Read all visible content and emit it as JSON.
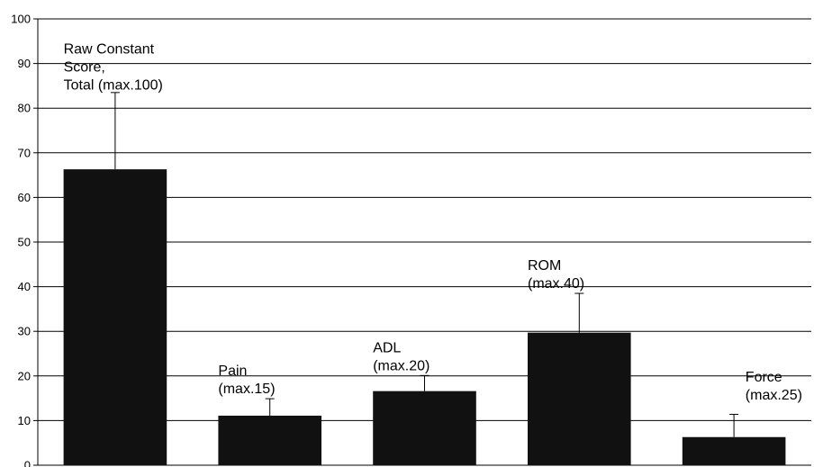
{
  "chart_data": {
    "type": "bar",
    "categories": [
      "Raw Constant Score, Total (max.100)",
      "Pain (max.15)",
      "ADL (max.20)",
      "ROM (max.40)",
      "Force (max.25)"
    ],
    "bar_labels": [
      [
        "Raw Constant",
        "Score,",
        "Total (max.100)"
      ],
      [
        "Pain",
        "(max.15)"
      ],
      [
        "ADL",
        "(max.20)"
      ],
      [
        "ROM",
        "(max.40)"
      ],
      [
        "Force",
        "(max.25)"
      ]
    ],
    "values": [
      66.3,
      11.1,
      16.6,
      29.7,
      6.3
    ],
    "error_upper": [
      83.5,
      14.9,
      20.1,
      38.5,
      11.4
    ],
    "ylim": [
      0,
      100
    ],
    "yticks": [
      "0",
      "10",
      "20",
      "30",
      "40",
      "50",
      "60",
      "70",
      "80",
      "90",
      "100"
    ],
    "grid": true,
    "legend": "none",
    "bar_color": "#111111"
  }
}
